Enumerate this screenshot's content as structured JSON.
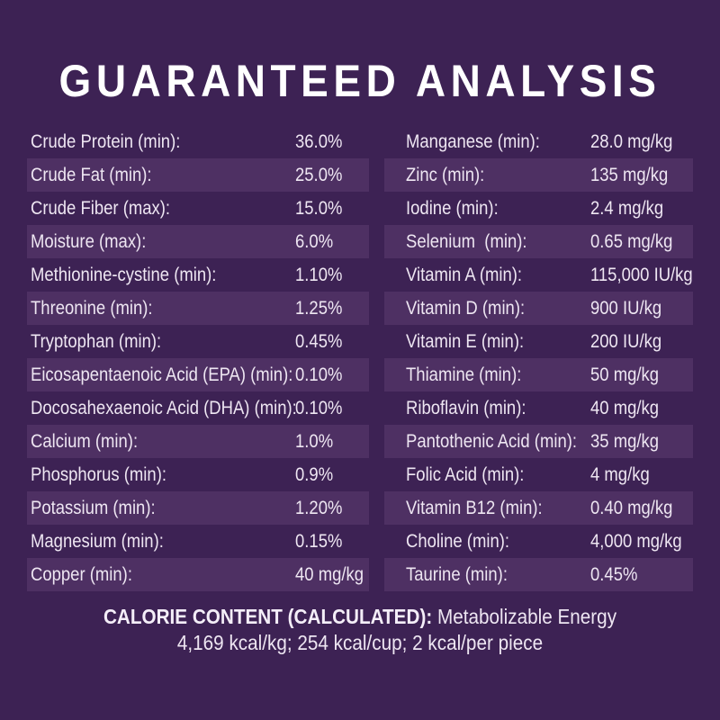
{
  "page": {
    "title": "GUARANTEED ANALYSIS",
    "background_color": "#3D2254",
    "stripe_color": "#4E3063",
    "text_color": "#EEE6F2",
    "title_color": "#FFFFFF"
  },
  "analysis": {
    "left_column": [
      {
        "label": "Crude Protein (min):",
        "value": "36.0%"
      },
      {
        "label": "Crude Fat (min):",
        "value": "25.0%"
      },
      {
        "label": "Crude Fiber (max):",
        "value": "15.0%"
      },
      {
        "label": "Moisture (max):",
        "value": "6.0%"
      },
      {
        "label": "Methionine-cystine (min):",
        "value": "1.10%"
      },
      {
        "label": "Threonine (min):",
        "value": "1.25%"
      },
      {
        "label": "Tryptophan (min):",
        "value": "0.45%"
      },
      {
        "label": "Eicosapentaenoic Acid (EPA) (min):",
        "value": "0.10%"
      },
      {
        "label": "Docosahexaenoic Acid (DHA) (min):",
        "value": "0.10%"
      },
      {
        "label": "Calcium (min):",
        "value": "1.0%"
      },
      {
        "label": "Phosphorus (min):",
        "value": "0.9%"
      },
      {
        "label": "Potassium (min):",
        "value": "1.20%"
      },
      {
        "label": "Magnesium (min):",
        "value": "0.15%"
      },
      {
        "label": "Copper (min):",
        "value": "40 mg/kg"
      }
    ],
    "right_column": [
      {
        "label": "Manganese (min):",
        "value": "28.0 mg/kg"
      },
      {
        "label": "Zinc (min):",
        "value": "135 mg/kg"
      },
      {
        "label": "Iodine (min):",
        "value": "2.4 mg/kg"
      },
      {
        "label": "Selenium  (min):",
        "value": "0.65 mg/kg"
      },
      {
        "label": "Vitamin A (min):",
        "value": "115,000 IU/kg"
      },
      {
        "label": "Vitamin D (min):",
        "value": "900 IU/kg"
      },
      {
        "label": "Vitamin E (min):",
        "value": "200 IU/kg"
      },
      {
        "label": "Thiamine (min):",
        "value": "50 mg/kg"
      },
      {
        "label": "Riboflavin (min):",
        "value": "40 mg/kg"
      },
      {
        "label": "Pantothenic Acid (min):",
        "value": "35 mg/kg"
      },
      {
        "label": "Folic Acid (min):",
        "value": "4 mg/kg"
      },
      {
        "label": "Vitamin B12 (min):",
        "value": "0.40 mg/kg"
      },
      {
        "label": "Choline (min):",
        "value": "4,000 mg/kg"
      },
      {
        "label": "Taurine (min):",
        "value": "0.45%"
      }
    ]
  },
  "calorie_content": {
    "heading": "CALORIE CONTENT (CALCULATED):",
    "subtitle": " Metabolizable Energy",
    "details": "4,169 kcal/kg; 254 kcal/cup; 2 kcal/per piece"
  }
}
